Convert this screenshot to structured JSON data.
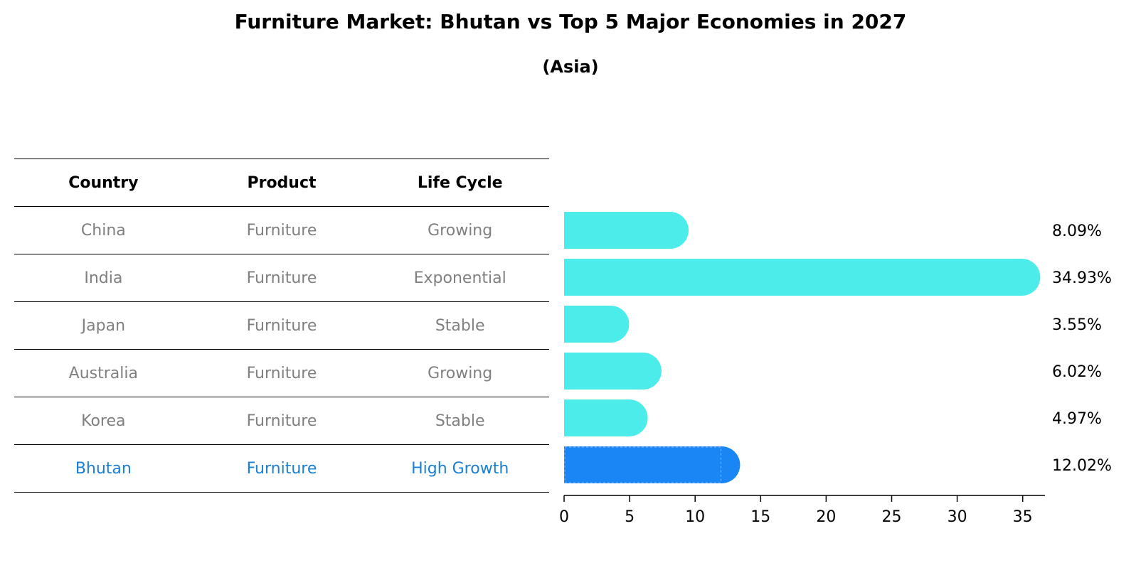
{
  "title": "Furniture Market: Bhutan vs Top 5 Major Economies in 2027",
  "subtitle": "(Asia)",
  "table": {
    "headers": [
      "Country",
      "Product",
      "Life Cycle"
    ],
    "rows": [
      [
        "China",
        "Furniture",
        "Growing"
      ],
      [
        "India",
        "Furniture",
        "Exponential"
      ],
      [
        "Japan",
        "Furniture",
        "Stable"
      ],
      [
        "Australia",
        "Furniture",
        "Growing"
      ],
      [
        "Korea",
        "Furniture",
        "Stable"
      ],
      [
        "Bhutan",
        "Furniture",
        "High Growth"
      ]
    ],
    "highlight_color": "#1a7fd6",
    "text_color": "#808080"
  },
  "chart_data": {
    "type": "bar",
    "orientation": "horizontal",
    "title": "Furniture Market: Bhutan vs Top 5 Major Economies in 2027",
    "subtitle": "(Asia)",
    "categories": [
      "China",
      "India",
      "Japan",
      "Australia",
      "Korea",
      "Bhutan"
    ],
    "values": [
      8.09,
      34.93,
      3.55,
      6.02,
      4.97,
      12.02
    ],
    "value_labels": [
      "8.09%",
      "34.93%",
      "3.55%",
      "6.02%",
      "4.97%",
      "12.02%"
    ],
    "xlim": [
      0,
      36.7
    ],
    "xticks": [
      0,
      5,
      10,
      15,
      20,
      25,
      30,
      35
    ],
    "xlabel": "",
    "ylabel": "",
    "grid": false,
    "colors": {
      "default": "#4becea",
      "highlight": "#1a86f6"
    },
    "highlight_category": "Bhutan"
  }
}
